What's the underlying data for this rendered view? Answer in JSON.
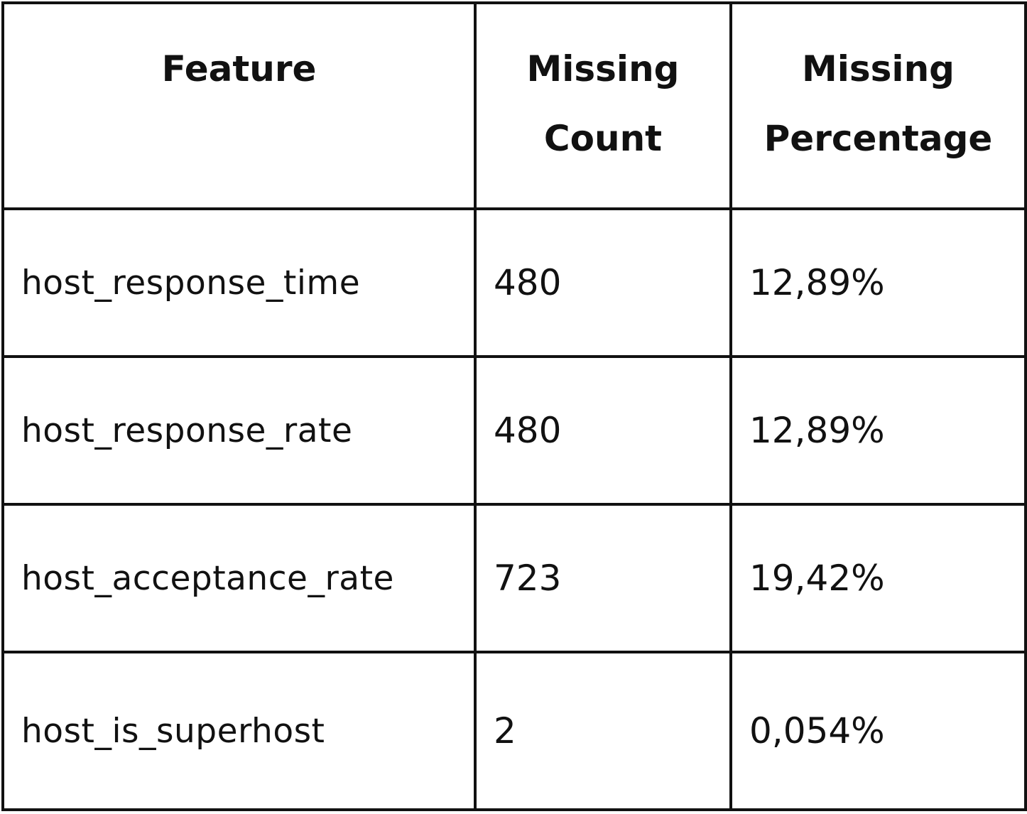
{
  "table": {
    "headers": [
      {
        "line1": "Feature",
        "line2": ""
      },
      {
        "line1": "Missing",
        "line2": "Count"
      },
      {
        "line1": "Missing",
        "line2": "Percentage"
      }
    ],
    "rows": [
      {
        "feature": "host_response_time",
        "count": "480",
        "percentage": "12,89%"
      },
      {
        "feature": "host_response_rate",
        "count": "480",
        "percentage": "12,89%"
      },
      {
        "feature": "host_acceptance_rate",
        "count": "723",
        "percentage": "19,42%"
      },
      {
        "feature": "host_is_superhost",
        "count": "2",
        "percentage": "0,054%"
      }
    ]
  }
}
